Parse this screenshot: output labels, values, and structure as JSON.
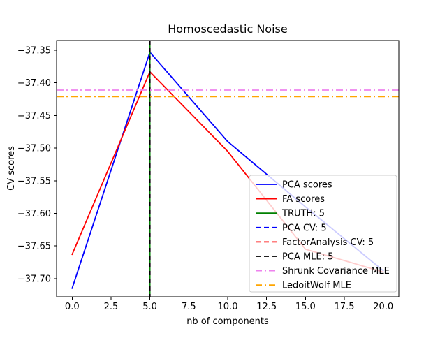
{
  "figure": {
    "title": "Homoscedastic Noise",
    "xlabel": "nb of components",
    "ylabel": "CV scores"
  },
  "chart_data": {
    "type": "line",
    "title": "Homoscedastic Noise",
    "xlabel": "nb of components",
    "ylabel": "CV scores",
    "grid": false,
    "xlim": [
      -1,
      21
    ],
    "ylim": [
      -37.728,
      -37.335
    ],
    "xticks": [
      0.0,
      2.5,
      5.0,
      7.5,
      10.0,
      12.5,
      15.0,
      17.5,
      20.0
    ],
    "xtick_labels": [
      "0.0",
      "2.5",
      "5.0",
      "7.5",
      "10.0",
      "12.5",
      "15.0",
      "17.5",
      "20.0"
    ],
    "yticks": [
      -37.35,
      -37.4,
      -37.45,
      -37.5,
      -37.55,
      -37.6,
      -37.65,
      -37.7
    ],
    "ytick_labels": [
      "−37.35",
      "−37.40",
      "−37.45",
      "−37.50",
      "−37.55",
      "−37.60",
      "−37.65",
      "−37.70"
    ],
    "x": [
      0,
      5,
      10,
      15,
      20
    ],
    "series": [
      {
        "name": "PCA scores",
        "color": "#0000ff",
        "style": "solid",
        "values": [
          -37.715,
          -37.353,
          -37.49,
          -37.59,
          -37.688
        ]
      },
      {
        "name": "FA scores",
        "color": "#ff0000",
        "style": "solid",
        "values": [
          -37.663,
          -37.383,
          -37.505,
          -37.655,
          -37.69
        ]
      }
    ],
    "vlines": [
      {
        "label": "TRUTH: 5",
        "x": 5,
        "color": "#008000",
        "style": "solid"
      },
      {
        "label": "PCA CV: 5",
        "x": 5,
        "color": "#0000ff",
        "style": "dashed"
      },
      {
        "label": "FactorAnalysis CV: 5",
        "x": 5,
        "color": "#ff0000",
        "style": "dashed"
      },
      {
        "label": "PCA MLE: 5",
        "x": 5,
        "color": "#000000",
        "style": "dashed"
      }
    ],
    "hlines": [
      {
        "label": "Shrunk Covariance MLE",
        "y": -37.411,
        "color": "#ee82ee",
        "style": "dashdot"
      },
      {
        "label": "LedoitWolf MLE",
        "y": -37.421,
        "color": "#ffa500",
        "style": "dashdot"
      }
    ],
    "legend": {
      "position": "center right",
      "entries": [
        {
          "label": "PCA scores",
          "color": "#0000ff",
          "style": "solid"
        },
        {
          "label": "FA scores",
          "color": "#ff0000",
          "style": "solid"
        },
        {
          "label": "TRUTH: 5",
          "color": "#008000",
          "style": "solid"
        },
        {
          "label": "PCA CV: 5",
          "color": "#0000ff",
          "style": "dashed"
        },
        {
          "label": "FactorAnalysis CV: 5",
          "color": "#ff0000",
          "style": "dashed"
        },
        {
          "label": "PCA MLE: 5",
          "color": "#000000",
          "style": "dashed"
        },
        {
          "label": "Shrunk Covariance MLE",
          "color": "#ee82ee",
          "style": "dashdot"
        },
        {
          "label": "LedoitWolf MLE",
          "color": "#ffa500",
          "style": "dashdot"
        }
      ]
    }
  }
}
